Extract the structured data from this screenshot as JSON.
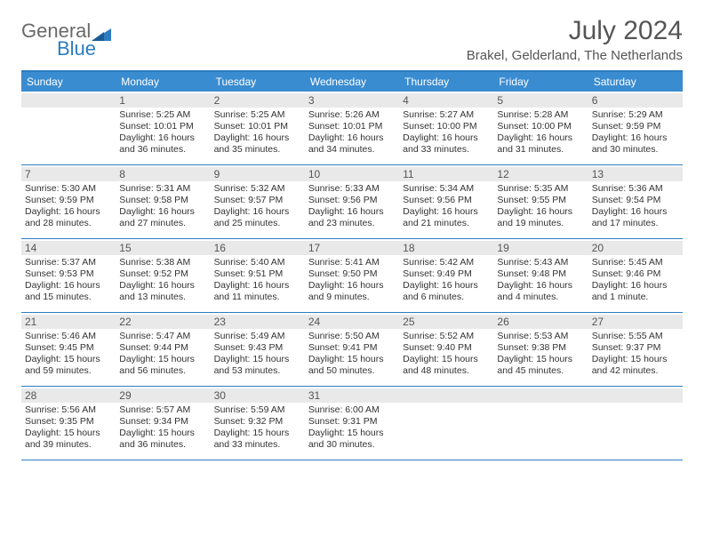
{
  "logo": {
    "word1": "General",
    "word2": "Blue"
  },
  "title": "July 2024",
  "location": "Brakel, Gelderland, The Netherlands",
  "dayNames": [
    "Sunday",
    "Monday",
    "Tuesday",
    "Wednesday",
    "Thursday",
    "Friday",
    "Saturday"
  ],
  "colors": {
    "header_bg": "#3a8cd0",
    "border": "#2e7cc0",
    "daynum_bg": "#e9e9e9",
    "text": "#333333",
    "title_text": "#555555"
  },
  "typography": {
    "title_fontsize": 30,
    "location_fontsize": 15,
    "dayheader_fontsize": 12,
    "daynum_fontsize": 12,
    "body_fontsize": 10.5
  },
  "layout": {
    "columns": 7,
    "rows": 5,
    "first_weekday_offset": 1
  },
  "weeks": [
    [
      {
        "n": "",
        "sr": "",
        "ss": "",
        "dl": ""
      },
      {
        "n": "1",
        "sr": "Sunrise: 5:25 AM",
        "ss": "Sunset: 10:01 PM",
        "dl": "Daylight: 16 hours and 36 minutes."
      },
      {
        "n": "2",
        "sr": "Sunrise: 5:25 AM",
        "ss": "Sunset: 10:01 PM",
        "dl": "Daylight: 16 hours and 35 minutes."
      },
      {
        "n": "3",
        "sr": "Sunrise: 5:26 AM",
        "ss": "Sunset: 10:01 PM",
        "dl": "Daylight: 16 hours and 34 minutes."
      },
      {
        "n": "4",
        "sr": "Sunrise: 5:27 AM",
        "ss": "Sunset: 10:00 PM",
        "dl": "Daylight: 16 hours and 33 minutes."
      },
      {
        "n": "5",
        "sr": "Sunrise: 5:28 AM",
        "ss": "Sunset: 10:00 PM",
        "dl": "Daylight: 16 hours and 31 minutes."
      },
      {
        "n": "6",
        "sr": "Sunrise: 5:29 AM",
        "ss": "Sunset: 9:59 PM",
        "dl": "Daylight: 16 hours and 30 minutes."
      }
    ],
    [
      {
        "n": "7",
        "sr": "Sunrise: 5:30 AM",
        "ss": "Sunset: 9:59 PM",
        "dl": "Daylight: 16 hours and 28 minutes."
      },
      {
        "n": "8",
        "sr": "Sunrise: 5:31 AM",
        "ss": "Sunset: 9:58 PM",
        "dl": "Daylight: 16 hours and 27 minutes."
      },
      {
        "n": "9",
        "sr": "Sunrise: 5:32 AM",
        "ss": "Sunset: 9:57 PM",
        "dl": "Daylight: 16 hours and 25 minutes."
      },
      {
        "n": "10",
        "sr": "Sunrise: 5:33 AM",
        "ss": "Sunset: 9:56 PM",
        "dl": "Daylight: 16 hours and 23 minutes."
      },
      {
        "n": "11",
        "sr": "Sunrise: 5:34 AM",
        "ss": "Sunset: 9:56 PM",
        "dl": "Daylight: 16 hours and 21 minutes."
      },
      {
        "n": "12",
        "sr": "Sunrise: 5:35 AM",
        "ss": "Sunset: 9:55 PM",
        "dl": "Daylight: 16 hours and 19 minutes."
      },
      {
        "n": "13",
        "sr": "Sunrise: 5:36 AM",
        "ss": "Sunset: 9:54 PM",
        "dl": "Daylight: 16 hours and 17 minutes."
      }
    ],
    [
      {
        "n": "14",
        "sr": "Sunrise: 5:37 AM",
        "ss": "Sunset: 9:53 PM",
        "dl": "Daylight: 16 hours and 15 minutes."
      },
      {
        "n": "15",
        "sr": "Sunrise: 5:38 AM",
        "ss": "Sunset: 9:52 PM",
        "dl": "Daylight: 16 hours and 13 minutes."
      },
      {
        "n": "16",
        "sr": "Sunrise: 5:40 AM",
        "ss": "Sunset: 9:51 PM",
        "dl": "Daylight: 16 hours and 11 minutes."
      },
      {
        "n": "17",
        "sr": "Sunrise: 5:41 AM",
        "ss": "Sunset: 9:50 PM",
        "dl": "Daylight: 16 hours and 9 minutes."
      },
      {
        "n": "18",
        "sr": "Sunrise: 5:42 AM",
        "ss": "Sunset: 9:49 PM",
        "dl": "Daylight: 16 hours and 6 minutes."
      },
      {
        "n": "19",
        "sr": "Sunrise: 5:43 AM",
        "ss": "Sunset: 9:48 PM",
        "dl": "Daylight: 16 hours and 4 minutes."
      },
      {
        "n": "20",
        "sr": "Sunrise: 5:45 AM",
        "ss": "Sunset: 9:46 PM",
        "dl": "Daylight: 16 hours and 1 minute."
      }
    ],
    [
      {
        "n": "21",
        "sr": "Sunrise: 5:46 AM",
        "ss": "Sunset: 9:45 PM",
        "dl": "Daylight: 15 hours and 59 minutes."
      },
      {
        "n": "22",
        "sr": "Sunrise: 5:47 AM",
        "ss": "Sunset: 9:44 PM",
        "dl": "Daylight: 15 hours and 56 minutes."
      },
      {
        "n": "23",
        "sr": "Sunrise: 5:49 AM",
        "ss": "Sunset: 9:43 PM",
        "dl": "Daylight: 15 hours and 53 minutes."
      },
      {
        "n": "24",
        "sr": "Sunrise: 5:50 AM",
        "ss": "Sunset: 9:41 PM",
        "dl": "Daylight: 15 hours and 50 minutes."
      },
      {
        "n": "25",
        "sr": "Sunrise: 5:52 AM",
        "ss": "Sunset: 9:40 PM",
        "dl": "Daylight: 15 hours and 48 minutes."
      },
      {
        "n": "26",
        "sr": "Sunrise: 5:53 AM",
        "ss": "Sunset: 9:38 PM",
        "dl": "Daylight: 15 hours and 45 minutes."
      },
      {
        "n": "27",
        "sr": "Sunrise: 5:55 AM",
        "ss": "Sunset: 9:37 PM",
        "dl": "Daylight: 15 hours and 42 minutes."
      }
    ],
    [
      {
        "n": "28",
        "sr": "Sunrise: 5:56 AM",
        "ss": "Sunset: 9:35 PM",
        "dl": "Daylight: 15 hours and 39 minutes."
      },
      {
        "n": "29",
        "sr": "Sunrise: 5:57 AM",
        "ss": "Sunset: 9:34 PM",
        "dl": "Daylight: 15 hours and 36 minutes."
      },
      {
        "n": "30",
        "sr": "Sunrise: 5:59 AM",
        "ss": "Sunset: 9:32 PM",
        "dl": "Daylight: 15 hours and 33 minutes."
      },
      {
        "n": "31",
        "sr": "Sunrise: 6:00 AM",
        "ss": "Sunset: 9:31 PM",
        "dl": "Daylight: 15 hours and 30 minutes."
      },
      {
        "n": "",
        "sr": "",
        "ss": "",
        "dl": ""
      },
      {
        "n": "",
        "sr": "",
        "ss": "",
        "dl": ""
      },
      {
        "n": "",
        "sr": "",
        "ss": "",
        "dl": ""
      }
    ]
  ]
}
